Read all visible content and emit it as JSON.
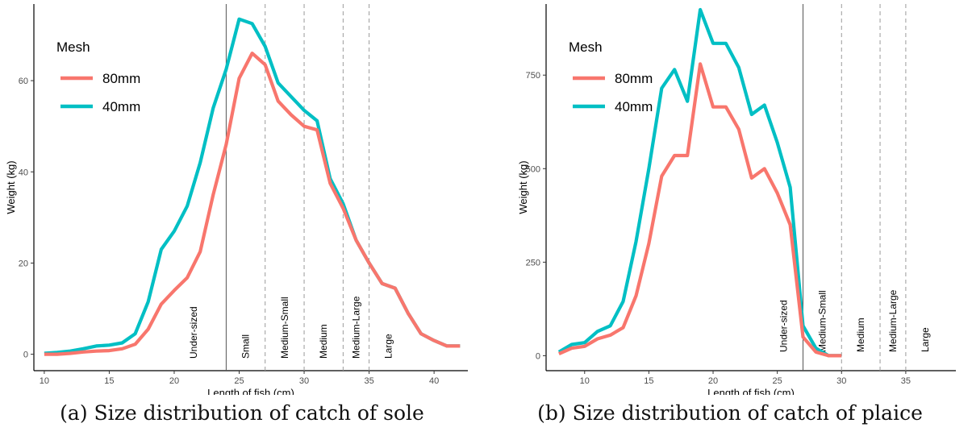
{
  "chart_data": [
    {
      "type": "line",
      "title": "",
      "xlabel": "Length of fish (cm)",
      "ylabel": "Weight (kg)",
      "xlim": [
        9.2,
        42.6
      ],
      "ylim": [
        -3.6,
        76.8
      ],
      "xticks": [
        10,
        15,
        20,
        25,
        30,
        35,
        40
      ],
      "yticks": [
        0,
        20,
        40,
        60
      ],
      "grid": false,
      "legend": {
        "title": "Mesh",
        "position": "top-left"
      },
      "series": [
        {
          "name": "80mm",
          "color": "#F8766D",
          "x": [
            10,
            11,
            12,
            13,
            14,
            15,
            16,
            17,
            18,
            19,
            20,
            21,
            22,
            23,
            24,
            25,
            26,
            27,
            28,
            29,
            30,
            31,
            32,
            33,
            34,
            35,
            36,
            37,
            38,
            39,
            40,
            41,
            42
          ],
          "y": [
            0,
            0,
            0.2,
            0.5,
            0.7,
            0.8,
            1.2,
            2.2,
            5.5,
            11,
            14,
            16.8,
            22.5,
            35,
            46,
            60.5,
            66,
            63.5,
            55.5,
            52.5,
            50,
            49.2,
            37.5,
            32,
            25,
            20,
            15.5,
            14.5,
            9,
            4.5,
            3,
            1.8,
            1.8
          ]
        },
        {
          "name": "40mm",
          "color": "#00BFC4",
          "x": [
            10,
            11,
            12,
            13,
            14,
            15,
            16,
            17,
            18,
            19,
            20,
            21,
            22,
            23,
            24,
            25,
            26,
            27,
            28,
            29,
            30,
            31,
            32,
            33,
            34,
            35,
            36,
            37,
            38,
            39,
            40,
            41,
            42
          ],
          "y": [
            0.2,
            0.4,
            0.7,
            1.2,
            1.8,
            2,
            2.5,
            4.5,
            11.5,
            23,
            27,
            32.5,
            42,
            54,
            62.5,
            73.5,
            72.5,
            67.5,
            59.5,
            56.5,
            53.5,
            51.2,
            38.5,
            33,
            25,
            20,
            15.5,
            14.5,
            9,
            4.5,
            3,
            1.8,
            1.8
          ]
        }
      ],
      "vlines": [
        {
          "x": 24,
          "style": "solid"
        },
        {
          "x": 27,
          "style": "dashed"
        },
        {
          "x": 30,
          "style": "dashed"
        },
        {
          "x": 33,
          "style": "dashed"
        },
        {
          "x": 35,
          "style": "dashed"
        }
      ],
      "band_labels": [
        {
          "text": "Under-sized",
          "x": 21.5
        },
        {
          "text": "Small",
          "x": 25.5
        },
        {
          "text": "Medium-Small",
          "x": 28.5
        },
        {
          "text": "Medium",
          "x": 31.5
        },
        {
          "text": "Medium-Large",
          "x": 34.0
        },
        {
          "text": "Large",
          "x": 36.5
        }
      ]
    },
    {
      "type": "line",
      "title": "",
      "xlabel": "Length of fish (cm)",
      "ylabel": "Weight (kg)",
      "xlim": [
        7.0,
        38.9
      ],
      "ylim": [
        -40,
        940
      ],
      "xticks": [
        10,
        15,
        20,
        25,
        30,
        35
      ],
      "yticks": [
        0,
        250,
        500,
        750
      ],
      "grid": false,
      "legend": {
        "title": "Mesh",
        "position": "top-left"
      },
      "series": [
        {
          "name": "80mm",
          "color": "#F8766D",
          "x": [
            8,
            9,
            10,
            11,
            12,
            13,
            14,
            15,
            16,
            17,
            18,
            19,
            20,
            21,
            22,
            23,
            24,
            25,
            26,
            27,
            28,
            29,
            30
          ],
          "y": [
            5,
            20,
            25,
            45,
            55,
            75,
            160,
            300,
            480,
            535,
            535,
            780,
            665,
            665,
            605,
            475,
            500,
            435,
            350,
            50,
            10,
            0,
            0
          ]
        },
        {
          "name": "40mm",
          "color": "#00BFC4",
          "x": [
            8,
            9,
            10,
            11,
            12,
            13,
            14,
            15,
            16,
            17,
            18,
            19,
            20,
            21,
            22,
            23,
            24,
            25,
            26,
            27,
            28,
            29,
            30
          ],
          "y": [
            10,
            30,
            35,
            65,
            80,
            145,
            305,
            500,
            715,
            765,
            680,
            925,
            835,
            835,
            770,
            645,
            670,
            570,
            450,
            80,
            20,
            0,
            0
          ]
        }
      ],
      "vlines": [
        {
          "x": 27,
          "style": "solid"
        },
        {
          "x": 30,
          "style": "dashed"
        },
        {
          "x": 33,
          "style": "dashed"
        },
        {
          "x": 35,
          "style": "dashed"
        }
      ],
      "band_labels": [
        {
          "text": "Under-sized",
          "x": 25.5
        },
        {
          "text": "Medium-Small",
          "x": 28.5
        },
        {
          "text": "Medium",
          "x": 31.5
        },
        {
          "text": "Medium-Large",
          "x": 34.0
        },
        {
          "text": "Large",
          "x": 36.5
        }
      ]
    }
  ],
  "captions": [
    "(a) Size distribution of catch of sole",
    "(b) Size distribution of catch of plaice"
  ]
}
